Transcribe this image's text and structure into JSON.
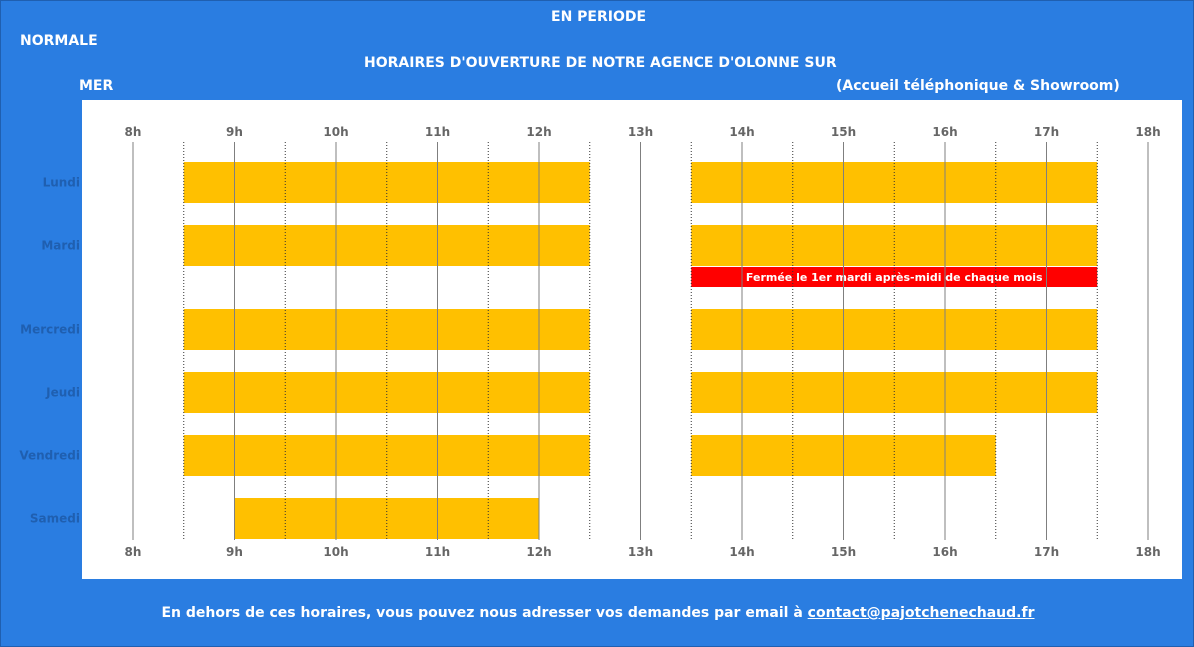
{
  "header": {
    "line1": "EN PERIODE",
    "line2": "NORMALE",
    "line3": "HORAIRES D'OUVERTURE DE NOTRE AGENCE D'OLONNE SUR",
    "line4": "MER",
    "subtitle": "(Accueil téléphonique & Showroom)"
  },
  "footer": {
    "text": "En dehors de ces horaires, vous pouvez nous adresser vos demandes par email à ",
    "email": "contact@pajotchenechaud.fr"
  },
  "colors": {
    "background": "#2a7de1",
    "open_bar": "#ffc000",
    "closed_note": "#ff0000",
    "text_white": "#ffffff"
  },
  "chart_data": {
    "type": "bar",
    "orientation": "horizontal",
    "x_range": [
      8,
      18
    ],
    "x_ticks": [
      "8h",
      "9h",
      "10h",
      "11h",
      "12h",
      "13h",
      "14h",
      "15h",
      "16h",
      "17h",
      "18h"
    ],
    "categories": [
      "Lundi",
      "Mardi",
      "Mercredi",
      "Jeudi",
      "Vendredi",
      "Samedi"
    ],
    "open_slots": [
      {
        "day": "Lundi",
        "ranges": [
          [
            8.5,
            12.5
          ],
          [
            13.5,
            17.5
          ]
        ]
      },
      {
        "day": "Mardi",
        "ranges": [
          [
            8.5,
            12.5
          ],
          [
            13.5,
            17.5
          ]
        ]
      },
      {
        "day": "Mercredi",
        "ranges": [
          [
            8.5,
            12.5
          ],
          [
            13.5,
            17.5
          ]
        ]
      },
      {
        "day": "Jeudi",
        "ranges": [
          [
            8.5,
            12.5
          ],
          [
            13.5,
            17.5
          ]
        ]
      },
      {
        "day": "Vendredi",
        "ranges": [
          [
            8.5,
            12.5
          ],
          [
            13.5,
            16.5
          ]
        ]
      },
      {
        "day": "Samedi",
        "ranges": [
          [
            9,
            12
          ]
        ]
      }
    ],
    "annotation": {
      "day": "Mardi",
      "range": [
        13.5,
        17.5
      ],
      "text": "Fermée le 1er mardi après-midi de chaque mois"
    },
    "grid_solid_hours": [
      8,
      9,
      10,
      11,
      12,
      13,
      14,
      15,
      16,
      17,
      18
    ],
    "grid_dotted_hours": [
      8.5,
      9.5,
      10.5,
      11.5,
      12.5,
      13.5,
      14.5,
      15.5,
      16.5,
      17.5
    ]
  }
}
